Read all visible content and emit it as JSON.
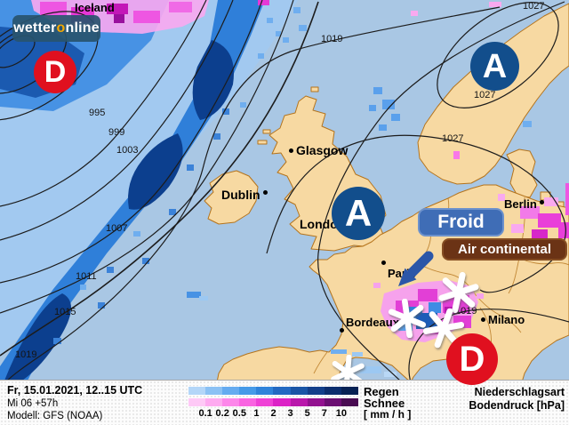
{
  "logo": {
    "part_white": "wetter",
    "part_accent": "o",
    "part_rest": "nline"
  },
  "map": {
    "country_labels": [
      {
        "name": "Iceland"
      }
    ],
    "cities": [
      {
        "name": "Glasgow"
      },
      {
        "name": "Dublin"
      },
      {
        "name": "London"
      },
      {
        "name": "Berlin"
      },
      {
        "name": "Paris"
      },
      {
        "name": "Bordeaux"
      },
      {
        "name": "Milano"
      }
    ],
    "isobar_labels": [
      {
        "value": "995"
      },
      {
        "value": "999"
      },
      {
        "value": "1003"
      },
      {
        "value": "1007"
      },
      {
        "value": "1011"
      },
      {
        "value": "1015"
      },
      {
        "value": "1019"
      },
      {
        "value": "1019"
      },
      {
        "value": "1027"
      },
      {
        "value": "1027"
      },
      {
        "value": "1027"
      },
      {
        "value": "1019"
      }
    ],
    "pressure_systems": [
      {
        "symbol": "D",
        "type": "low"
      },
      {
        "symbol": "A",
        "type": "high"
      },
      {
        "symbol": "A",
        "type": "high"
      },
      {
        "symbol": "D",
        "type": "low"
      }
    ],
    "callouts": {
      "cold_label": "Froid",
      "air_label": "Air continental"
    }
  },
  "info": {
    "line1": "Fr, 15.01.2021, 12..15 UTC",
    "line2": "Mi 06 +57h",
    "line3": "Modell: GFS (NOAA)"
  },
  "legend": {
    "rain_label": "Regen",
    "snow_label": "Schnee",
    "unit_label": "[ mm / h ]",
    "ticks": [
      "0.1",
      "0.2",
      "0.5",
      "1",
      "2",
      "3",
      "5",
      "7",
      "10"
    ],
    "rain_colors": [
      "#b3d6f8",
      "#8bc1f4",
      "#65abf0",
      "#459ae8",
      "#2f83da",
      "#2269c2",
      "#1955a6",
      "#123f8a",
      "#0b2e6e",
      "#072254"
    ],
    "snow_colors": [
      "#fec9f6",
      "#feaaf0",
      "#fd87ea",
      "#f964e1",
      "#ef41d6",
      "#dc22c6",
      "#b917ab",
      "#92118f",
      "#6b0e72",
      "#490b52"
    ],
    "type_label": "Niederschlagsart",
    "pressure_label": "Bodendruck [hPa]"
  },
  "colors": {
    "sea": "#a9c7e4",
    "land": "#f7d9a2",
    "coastline": "#b5741c",
    "low_pressure_red": "#e0101f",
    "high_pressure_blue": "#124e8c",
    "cold_box_blue": "#3f6db6",
    "air_box_brown": "#6b3315",
    "arrow_blue": "#2b56a8",
    "logo_accent_orange": "#f5a800"
  }
}
